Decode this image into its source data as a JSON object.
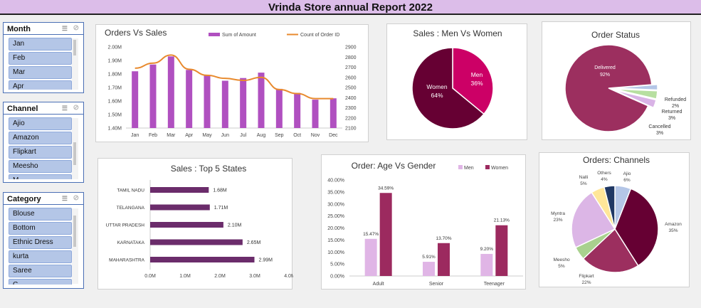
{
  "report_title": "Vrinda Store annual Report 2022",
  "colors": {
    "purple": "#b050c0",
    "orange": "#e88a2e",
    "dark": "#660033",
    "magenta": "#cc0066",
    "plum": "#993366",
    "state": "#6b2c6b",
    "men": "#e0b5e6",
    "women": "#9c2a5f"
  },
  "slicers": {
    "month": {
      "title": "Month",
      "items": [
        "Jan",
        "Feb",
        "Mar",
        "Apr"
      ],
      "filter_icon": "multi-select-icon",
      "clear_icon": "clear-filter-icon"
    },
    "channel": {
      "title": "Channel",
      "items": [
        "Ajio",
        "Amazon",
        "Flipkart",
        "Meesho",
        "M"
      ],
      "filter_icon": "multi-select-icon",
      "clear_icon": "clear-filter-icon"
    },
    "category": {
      "title": "Category",
      "items": [
        "Blouse",
        "Bottom",
        "Ethnic Dress",
        "kurta",
        "Saree",
        "C"
      ],
      "filter_icon": "multi-select-icon",
      "clear_icon": "clear-filter-icon"
    }
  },
  "chart_data": [
    {
      "type": "bar",
      "title": "Orders Vs Sales",
      "categories": [
        "Jan",
        "Feb",
        "Mar",
        "Apr",
        "May",
        "Jun",
        "Jul",
        "Aug",
        "Sep",
        "Oct",
        "Nov",
        "Dec"
      ],
      "series": [
        {
          "name": "Sum of Amount",
          "axis": "left",
          "values": [
            1.82,
            1.87,
            1.93,
            1.83,
            1.79,
            1.75,
            1.77,
            1.81,
            1.69,
            1.66,
            1.61,
            1.62
          ]
        },
        {
          "name": "Count of Order ID",
          "axis": "right",
          "type": "line",
          "values": [
            2690,
            2740,
            2820,
            2680,
            2620,
            2590,
            2570,
            2600,
            2480,
            2440,
            2390,
            2390
          ]
        }
      ],
      "ylim_left": [
        1.4,
        2.0
      ],
      "yticks_left": [
        "1.40M",
        "1.50M",
        "1.60M",
        "1.70M",
        "1.80M",
        "1.90M",
        "2.00M"
      ],
      "ylim_right": [
        2100,
        2900
      ],
      "yticks_right": [
        "2100",
        "2200",
        "2300",
        "2400",
        "2500",
        "2600",
        "2700",
        "2800",
        "2900"
      ]
    },
    {
      "type": "pie",
      "title": "Sales : Men  Vs Women",
      "labels": [
        "Men",
        "Women"
      ],
      "values": [
        36,
        64
      ],
      "data_labels": [
        "36%",
        "64%"
      ]
    },
    {
      "type": "pie",
      "title": "Order Status",
      "labels": [
        "Delivered",
        "Refunded",
        "Returned",
        "Cancelled"
      ],
      "values": [
        92,
        2,
        3,
        3
      ],
      "data_labels": [
        "92%",
        "2%",
        "3%",
        "3%"
      ]
    },
    {
      "type": "bar",
      "orientation": "horizontal",
      "title": "Sales : Top 5 States",
      "categories": [
        "TAMIL NADU",
        "TELANGANA",
        "UTTAR PRADESH",
        "KARNATAKA",
        "MAHARASHTRA"
      ],
      "values": [
        1.68,
        1.71,
        2.1,
        2.65,
        2.99
      ],
      "data_labels": [
        "1.68M",
        "1.71M",
        "2.10M",
        "2.65M",
        "2.99M"
      ],
      "xlim": [
        0,
        4
      ],
      "xticks": [
        "0.0M",
        "1.0M",
        "2.0M",
        "3.0M",
        "4.0M"
      ]
    },
    {
      "type": "bar",
      "title": "Order: Age Vs Gender",
      "categories": [
        "Adult",
        "Senior",
        "Teenager"
      ],
      "series": [
        {
          "name": "Men",
          "values": [
            15.47,
            5.91,
            9.2
          ],
          "data_labels": [
            "15.47%",
            "5.91%",
            "9.20%"
          ]
        },
        {
          "name": "Women",
          "values": [
            34.59,
            13.7,
            21.13
          ],
          "data_labels": [
            "34.59%",
            "13.70%",
            "21.13%"
          ]
        }
      ],
      "ylim": [
        0,
        40
      ],
      "yticks": [
        "0.00%",
        "5.00%",
        "10.00%",
        "15.00%",
        "20.00%",
        "25.00%",
        "30.00%",
        "35.00%",
        "40.00%"
      ]
    },
    {
      "type": "pie",
      "title": "Orders: Channels",
      "labels": [
        "Ajio",
        "Amazon",
        "Flipkart",
        "Meesho",
        "Myntra",
        "Nalli",
        "Others"
      ],
      "values": [
        6,
        35,
        22,
        5,
        23,
        5,
        4
      ],
      "data_labels": [
        "6%",
        "35%",
        "22%",
        "5%",
        "23%",
        "5%",
        "4%"
      ]
    }
  ]
}
